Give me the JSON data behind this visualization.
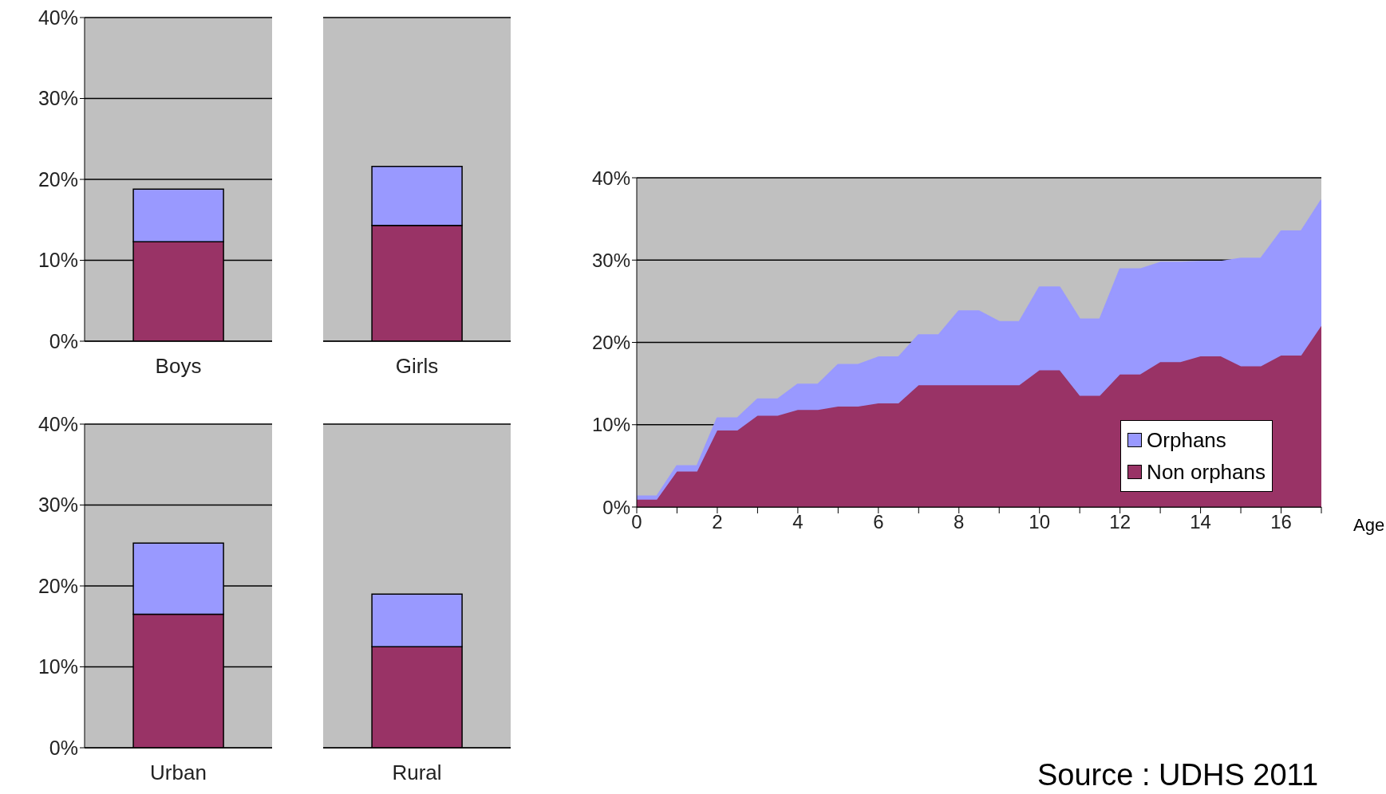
{
  "chart_data": [
    {
      "type": "bar",
      "stacked": true,
      "categories": [
        "Boys"
      ],
      "series": [
        {
          "color": "#993366",
          "values": [
            12.3
          ]
        },
        {
          "color": "#9999ff",
          "values": [
            6.5
          ]
        }
      ],
      "ylim": [
        0,
        40
      ],
      "yticks": [
        {
          "value": 0,
          "label": "0%"
        },
        {
          "value": 10,
          "label": "10%"
        },
        {
          "value": 20,
          "label": "20%"
        },
        {
          "value": 30,
          "label": "30%"
        },
        {
          "value": 40,
          "label": "40%"
        }
      ],
      "grid": "y"
    },
    {
      "type": "bar",
      "stacked": true,
      "categories": [
        "Girls"
      ],
      "series": [
        {
          "color": "#993366",
          "values": [
            14.3
          ]
        },
        {
          "color": "#9999ff",
          "values": [
            7.3
          ]
        }
      ],
      "ylim": [
        0,
        40
      ],
      "yticks": [
        {
          "value": 0,
          "label": null
        },
        {
          "value": 10,
          "label": null
        },
        {
          "value": 20,
          "label": null
        },
        {
          "value": 30,
          "label": null
        },
        {
          "value": 40,
          "label": null
        }
      ],
      "grid": "y",
      "tick_labels": "x"
    },
    {
      "type": "bar",
      "stacked": true,
      "categories": [
        "Urban"
      ],
      "series": [
        {
          "color": "#993366",
          "values": [
            16.5
          ]
        },
        {
          "color": "#9999ff",
          "values": [
            8.8
          ]
        }
      ],
      "ylim": [
        0,
        40
      ],
      "yticks": [
        {
          "value": 0,
          "label": "0%"
        },
        {
          "value": 10,
          "label": "10%"
        },
        {
          "value": 20,
          "label": "20%"
        },
        {
          "value": 30,
          "label": "30%"
        },
        {
          "value": 40,
          "label": "40%"
        }
      ],
      "grid": "y"
    },
    {
      "type": "bar",
      "stacked": true,
      "categories": [
        "Rural"
      ],
      "series": [
        {
          "color": "#993366",
          "values": [
            12.5
          ]
        },
        {
          "color": "#9999ff",
          "values": [
            6.5
          ]
        }
      ],
      "ylim": [
        0,
        40
      ],
      "yticks": [
        {
          "value": 0,
          "label": null
        },
        {
          "value": 10,
          "label": null
        },
        {
          "value": 20,
          "label": null
        },
        {
          "value": 30,
          "label": null
        },
        {
          "value": 40,
          "label": null
        }
      ],
      "grid": "y",
      "tick_labels": "x"
    },
    {
      "type": "area",
      "stacked": true,
      "xlabel": "Age",
      "x": [
        0,
        0.5,
        1,
        1.5,
        2,
        2.5,
        3,
        3.5,
        4,
        4.5,
        5,
        5.5,
        6,
        6.5,
        7,
        7.5,
        8,
        8.5,
        9,
        9.5,
        10,
        10.5,
        11,
        11.5,
        12,
        12.5,
        13,
        13.5,
        14,
        14.5,
        15,
        15.5,
        16,
        16.5,
        17
      ],
      "series": [
        {
          "name": "Non orphans",
          "color": "#993366",
          "values": [
            0.9,
            0.9,
            4.3,
            4.3,
            9.3,
            9.3,
            11.1,
            11.1,
            11.8,
            11.8,
            12.2,
            12.2,
            12.6,
            12.6,
            14.8,
            14.8,
            14.8,
            14.8,
            14.8,
            14.8,
            16.6,
            16.6,
            13.5,
            13.5,
            16.1,
            16.1,
            17.6,
            17.6,
            18.3,
            18.3,
            17.1,
            17.1,
            18.4,
            18.4,
            22.0
          ]
        },
        {
          "name": "Orphans",
          "color": "#9999ff",
          "values": [
            0.4,
            0.4,
            0.7,
            0.7,
            1.5,
            1.5,
            2.0,
            2.0,
            3.1,
            3.1,
            5.1,
            5.1,
            5.6,
            5.6,
            6.1,
            6.1,
            9.0,
            9.0,
            7.7,
            7.7,
            10.1,
            10.1,
            9.3,
            9.3,
            12.8,
            12.8,
            12.1,
            12.1,
            11.5,
            11.5,
            13.1,
            13.1,
            15.1,
            15.1,
            15.3
          ]
        }
      ],
      "xlim": [
        0,
        17
      ],
      "xticks": [
        0,
        {
          "value": 1,
          "label": null
        },
        2,
        {
          "value": 3,
          "label": null
        },
        4,
        {
          "value": 5,
          "label": null
        },
        6,
        {
          "value": 7,
          "label": null
        },
        8,
        {
          "value": 9,
          "label": null
        },
        10,
        {
          "value": 11,
          "label": null
        },
        12,
        {
          "value": 13,
          "label": null
        },
        14,
        {
          "value": 15,
          "label": null
        },
        16,
        {
          "value": 17,
          "label": null
        }
      ],
      "ylim": [
        0,
        40
      ],
      "yticks": [
        {
          "value": 0,
          "label": "0%"
        },
        {
          "value": 10,
          "label": "10%"
        },
        {
          "value": 20,
          "label": "20%"
        },
        {
          "value": 30,
          "label": "30%"
        },
        {
          "value": 40,
          "label": "40%"
        }
      ],
      "grid": "y",
      "legend": "bottom right",
      "annotations": [
        "Source : UDHS 2011"
      ]
    }
  ]
}
